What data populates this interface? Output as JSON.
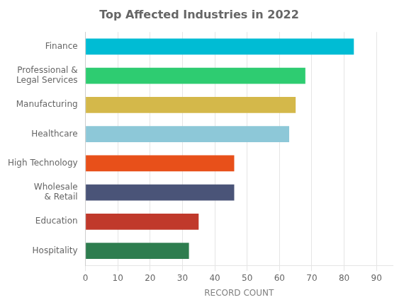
{
  "chart_data": {
    "type": "bar",
    "orientation": "horizontal",
    "title": "Top Affected Industries in 2022",
    "categories": [
      "Hospitality",
      "Education",
      "Wholesale\n& Retail",
      "High Technology",
      "Healthcare",
      "Manufacturing",
      "Professional &\nLegal Services",
      "Finance"
    ],
    "values": [
      32,
      35,
      46,
      46,
      63,
      65,
      68,
      83
    ],
    "colors": [
      "#2e7d4f",
      "#c0392b",
      "#4a5478",
      "#e8501a",
      "#8dc8d8",
      "#d4b84a",
      "#2ecc71",
      "#00bcd4"
    ],
    "xlabel": "RECORD COUNT",
    "xlim": [
      0,
      95
    ],
    "xticks": [
      0,
      10,
      20,
      30,
      40,
      50,
      60,
      70,
      80,
      90
    ],
    "grid": true
  }
}
